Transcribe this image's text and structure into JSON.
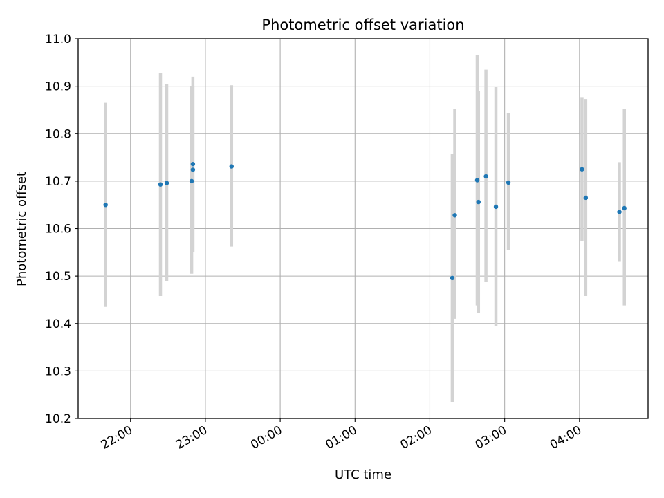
{
  "chart_data": {
    "type": "scatter",
    "title": "Photometric offset variation",
    "xlabel": "UTC time",
    "ylabel": "Photometric offset",
    "x_axis_kind": "time",
    "xlim": [
      "21:18",
      "04:55"
    ],
    "ylim": [
      10.2,
      11.0
    ],
    "grid": true,
    "x_ticks": [
      "22:00",
      "23:00",
      "00:00",
      "01:00",
      "02:00",
      "03:00",
      "04:00"
    ],
    "y_ticks": [
      "10.2",
      "10.3",
      "10.4",
      "10.5",
      "10.6",
      "10.7",
      "10.8",
      "10.9",
      "11.0"
    ],
    "marker_color": "#1f77b4",
    "errorbar_color": "#d3d3d3",
    "points": [
      {
        "time": "21:40",
        "y": 10.65,
        "ylow": 10.435,
        "yhigh": 10.865
      },
      {
        "time": "22:24",
        "y": 10.693,
        "ylow": 10.458,
        "yhigh": 10.928
      },
      {
        "time": "22:29",
        "y": 10.696,
        "ylow": 10.49,
        "yhigh": 10.905
      },
      {
        "time": "22:49",
        "y": 10.7,
        "ylow": 10.505,
        "yhigh": 10.9
      },
      {
        "time": "22:50",
        "y": 10.724,
        "ylow": 10.55,
        "yhigh": 10.9
      },
      {
        "time": "22:50",
        "y": 10.736,
        "ylow": 10.55,
        "yhigh": 10.92
      },
      {
        "time": "23:21",
        "y": 10.731,
        "ylow": 10.562,
        "yhigh": 10.902
      },
      {
        "time": "02:18",
        "y": 10.496,
        "ylow": 10.235,
        "yhigh": 10.757
      },
      {
        "time": "02:20",
        "y": 10.628,
        "ylow": 10.41,
        "yhigh": 10.852
      },
      {
        "time": "02:38",
        "y": 10.702,
        "ylow": 10.438,
        "yhigh": 10.965
      },
      {
        "time": "02:39",
        "y": 10.656,
        "ylow": 10.422,
        "yhigh": 10.89
      },
      {
        "time": "02:45",
        "y": 10.71,
        "ylow": 10.487,
        "yhigh": 10.935
      },
      {
        "time": "02:53",
        "y": 10.646,
        "ylow": 10.395,
        "yhigh": 10.898
      },
      {
        "time": "03:03",
        "y": 10.697,
        "ylow": 10.555,
        "yhigh": 10.843
      },
      {
        "time": "04:02",
        "y": 10.725,
        "ylow": 10.573,
        "yhigh": 10.877
      },
      {
        "time": "04:05",
        "y": 10.665,
        "ylow": 10.458,
        "yhigh": 10.873
      },
      {
        "time": "04:32",
        "y": 10.635,
        "ylow": 10.53,
        "yhigh": 10.74
      },
      {
        "time": "04:36",
        "y": 10.643,
        "ylow": 10.438,
        "yhigh": 10.852
      }
    ]
  }
}
